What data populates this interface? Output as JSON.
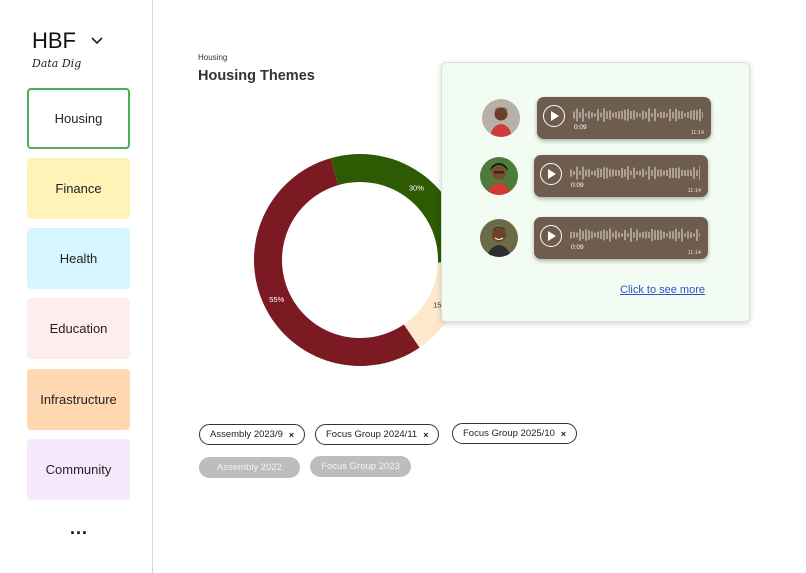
{
  "brand": {
    "name": "HBF",
    "subtitle": "Data Dig"
  },
  "sidebar": {
    "items": [
      {
        "label": "Housing",
        "bg": "#ffffff",
        "border": "#4caf50",
        "active": true
      },
      {
        "label": "Finance",
        "bg": "#fff3b8"
      },
      {
        "label": "Health",
        "bg": "#d6f5ff"
      },
      {
        "label": "Education",
        "bg": "#ffecec"
      },
      {
        "label": "Infrastructure",
        "bg": "#ffd7b1"
      },
      {
        "label": "Community",
        "bg": "#f7e9fd"
      }
    ],
    "more_label": "..."
  },
  "main": {
    "breadcrumb": "Housing",
    "title": "Housing Themes"
  },
  "chart_data": {
    "type": "pie",
    "style": "donut",
    "slices": [
      {
        "label": "30%",
        "value": 30,
        "color": "#2e5a04"
      },
      {
        "label": "15%",
        "value": 15,
        "color": "#fde8cc"
      },
      {
        "label": "55%",
        "value": 55,
        "color": "#7b1a22"
      }
    ]
  },
  "filters": {
    "active": [
      "Assembly 2023/9",
      "Focus Group 2024/11",
      "Focus Group 2025/10"
    ],
    "inactive": [
      "Assembly 2022",
      "Focus Group 2023"
    ],
    "remove_symbol": "×"
  },
  "popup": {
    "clips": [
      {
        "elapsed": "0:09",
        "duration": "11:14"
      },
      {
        "elapsed": "0:09",
        "duration": "11:14"
      },
      {
        "elapsed": "0:09",
        "duration": "11:14"
      }
    ],
    "link": "Click to see more"
  }
}
